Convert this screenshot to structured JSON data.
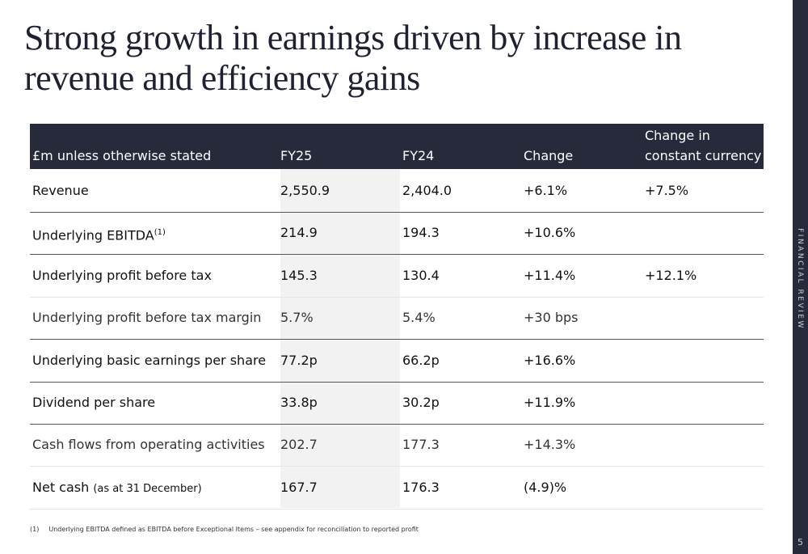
{
  "title": "Strong growth in earnings driven by increase in revenue and efficiency gains",
  "sidebar": {
    "label": "FINANCIAL REVIEW",
    "page_number": "5"
  },
  "table": {
    "headers": [
      "£m unless otherwise stated",
      "FY25",
      "FY24",
      "Change",
      "Change in constant currency"
    ],
    "header_line1": "Change in",
    "header_line2": "constant currency",
    "rows": [
      {
        "label": "Revenue",
        "fy25": "2,550.9",
        "fy24": "2,404.0",
        "change": "+6.1%",
        "cc": "+7.5%"
      },
      {
        "label": "Underlying EBITDA",
        "sup": "(1)",
        "fy25": "214.9",
        "fy24": "194.3",
        "change": "+10.6%",
        "cc": ""
      },
      {
        "label": "Underlying profit before tax",
        "fy25": "145.3",
        "fy24": "130.4",
        "change": "+11.4%",
        "cc": "+12.1%"
      },
      {
        "label": "Underlying profit before tax margin",
        "fy25": "5.7%",
        "fy24": "5.4%",
        "change": "+30 bps",
        "cc": ""
      },
      {
        "label": "Underlying basic earnings per share",
        "fy25": "77.2p",
        "fy24": "66.2p",
        "change": "+16.6%",
        "cc": ""
      },
      {
        "label": "Dividend per share",
        "fy25": "33.8p",
        "fy24": "30.2p",
        "change": "+11.9%",
        "cc": ""
      },
      {
        "label": "Cash flows from operating activities",
        "fy25": "202.7",
        "fy24": "177.3",
        "change": "+14.3%",
        "cc": ""
      },
      {
        "label": "Net cash",
        "sub": "(as at 31 December)",
        "fy25": "167.7",
        "fy24": "176.3",
        "change": "(4.9)%",
        "cc": ""
      }
    ]
  },
  "footnote": {
    "marker": "(1)",
    "text": "Underlying EBITDA defined as EBITDA before Exceptional Items – see appendix for reconciliation to reported profit"
  },
  "colors": {
    "navy": "#262a3b",
    "shade": "#f2f2f2"
  }
}
